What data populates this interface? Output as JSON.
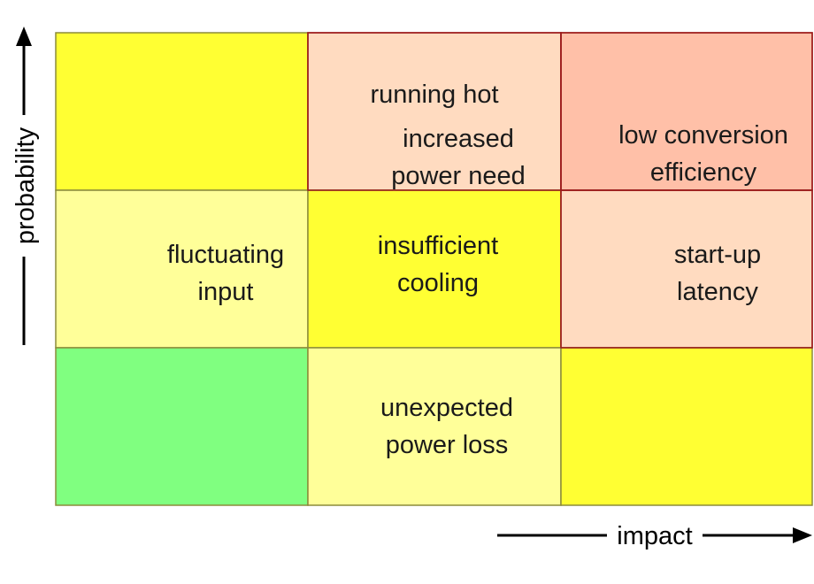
{
  "axes": {
    "x_label": "impact",
    "y_label": "probability"
  },
  "colors": {
    "green": "#80ff80",
    "yellow": "#ffff33",
    "light_yellow": "#ffff99",
    "peach": "#ffdbc0",
    "salmon": "#ffc0a8",
    "border_olive": "#8b8b3a",
    "border_red": "#9b1b1b"
  },
  "cells": [
    {
      "id": "high-low",
      "row": "high",
      "col": "low",
      "color": "yellow",
      "lines": []
    },
    {
      "id": "high-mid",
      "row": "high",
      "col": "mid",
      "color": "peach",
      "lines": [
        "running hot",
        "increased",
        "power need"
      ]
    },
    {
      "id": "high-high",
      "row": "high",
      "col": "high",
      "color": "salmon",
      "lines": [
        "low conversion",
        "efficiency"
      ]
    },
    {
      "id": "mid-low",
      "row": "mid",
      "col": "low",
      "color": "light_yellow",
      "lines": [
        "fluctuating",
        "input"
      ]
    },
    {
      "id": "mid-mid",
      "row": "mid",
      "col": "mid",
      "color": "yellow",
      "lines": [
        "insufficient",
        "cooling"
      ]
    },
    {
      "id": "mid-high",
      "row": "mid",
      "col": "high",
      "color": "peach",
      "lines": [
        "start-up",
        "latency"
      ]
    },
    {
      "id": "low-low",
      "row": "low",
      "col": "low",
      "color": "green",
      "lines": []
    },
    {
      "id": "low-mid",
      "row": "low",
      "col": "mid",
      "color": "light_yellow",
      "lines": [
        "unexpected",
        "power loss"
      ]
    },
    {
      "id": "low-high",
      "row": "low",
      "col": "high",
      "color": "yellow",
      "lines": []
    }
  ]
}
